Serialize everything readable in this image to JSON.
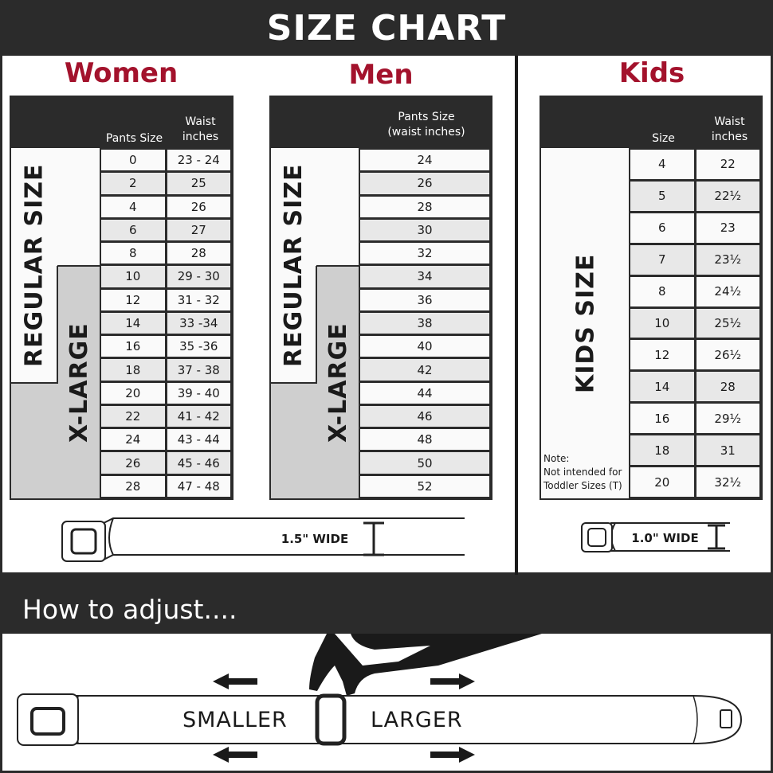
{
  "title": "SIZE CHART",
  "women": {
    "title": "Women",
    "col_headers": [
      "Pants Size",
      "Waist\ninches"
    ],
    "regular_label": "REGULAR SIZE",
    "xlarge_label": "X-LARGE",
    "rows": [
      [
        "0",
        "23 - 24"
      ],
      [
        "2",
        "25"
      ],
      [
        "4",
        "26"
      ],
      [
        "6",
        "27"
      ],
      [
        "8",
        "28"
      ],
      [
        "10",
        "29 - 30"
      ],
      [
        "12",
        "31 - 32"
      ],
      [
        "14",
        "33 -34"
      ],
      [
        "16",
        "35 -36"
      ],
      [
        "18",
        "37 - 38"
      ],
      [
        "20",
        "39 - 40"
      ],
      [
        "22",
        "41 - 42"
      ],
      [
        "24",
        "43 - 44"
      ],
      [
        "26",
        "45 - 46"
      ],
      [
        "28",
        "47 - 48"
      ]
    ],
    "belt_width": "1.5\" WIDE"
  },
  "men": {
    "title": "Men",
    "col_header": "Pants Size\n(waist inches)",
    "regular_label": "REGULAR SIZE",
    "xlarge_label": "X-LARGE",
    "rows": [
      "24",
      "26",
      "28",
      "30",
      "32",
      "34",
      "36",
      "38",
      "40",
      "42",
      "44",
      "46",
      "48",
      "50",
      "52"
    ]
  },
  "kids": {
    "title": "Kids",
    "col_headers": [
      "Size",
      "Waist\ninches"
    ],
    "label": "KIDS SIZE",
    "note": "Note:\nNot intended for\nToddler Sizes (T)",
    "rows": [
      [
        "4",
        "22"
      ],
      [
        "5",
        "22½"
      ],
      [
        "6",
        "23"
      ],
      [
        "7",
        "23½"
      ],
      [
        "8",
        "24½"
      ],
      [
        "10",
        "25½"
      ],
      [
        "12",
        "26½"
      ],
      [
        "14",
        "28"
      ],
      [
        "16",
        "29½"
      ],
      [
        "18",
        "31"
      ],
      [
        "20",
        "32½"
      ]
    ],
    "belt_width": "1.0\" WIDE"
  },
  "adjust": {
    "title": "How to adjust....",
    "smaller": "SMALLER",
    "larger": "LARGER"
  },
  "colors": {
    "accent": "#a3122c",
    "dark": "#2b2b2b",
    "row_alt": "#e8e8e8",
    "xlarge_bg": "#cfcfcf"
  }
}
